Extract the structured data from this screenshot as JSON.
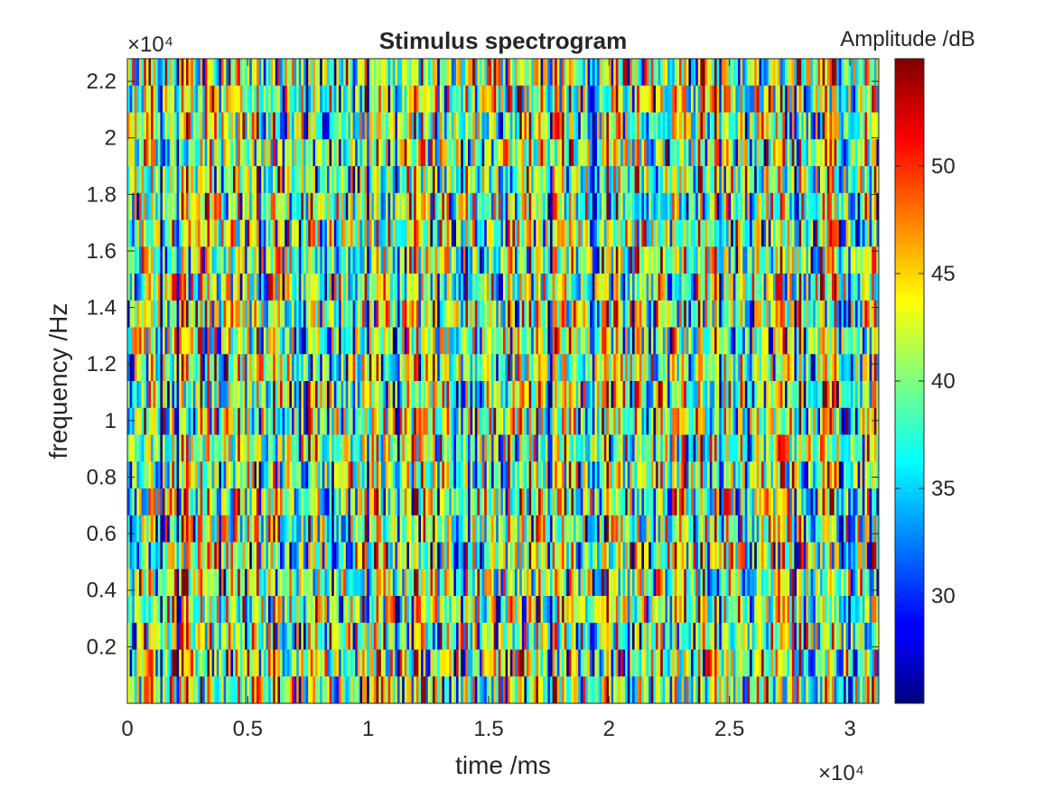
{
  "chart_data": {
    "type": "heatmap",
    "title": "Stimulus spectrogram",
    "xlabel": "time /ms",
    "ylabel": "frequency /Hz",
    "x_exponent_label": "×10⁴",
    "y_exponent_label": "×10⁴",
    "x_ticks": [
      {
        "value": 0,
        "label": "0"
      },
      {
        "value": 5000,
        "label": "0.5"
      },
      {
        "value": 10000,
        "label": "1"
      },
      {
        "value": 15000,
        "label": "1.5"
      },
      {
        "value": 20000,
        "label": "2"
      },
      {
        "value": 25000,
        "label": "2.5"
      },
      {
        "value": 30000,
        "label": "3"
      }
    ],
    "y_ticks": [
      {
        "value": 2000,
        "label": "0.2"
      },
      {
        "value": 4000,
        "label": "0.4"
      },
      {
        "value": 6000,
        "label": "0.6"
      },
      {
        "value": 8000,
        "label": "0.8"
      },
      {
        "value": 10000,
        "label": "1"
      },
      {
        "value": 12000,
        "label": "1.2"
      },
      {
        "value": 14000,
        "label": "1.4"
      },
      {
        "value": 16000,
        "label": "1.6"
      },
      {
        "value": 18000,
        "label": "1.8"
      },
      {
        "value": 20000,
        "label": "2"
      },
      {
        "value": 22000,
        "label": "2.2"
      }
    ],
    "xlim": [
      0,
      31200
    ],
    "ylim": [
      0,
      22800
    ],
    "grid": false,
    "colormap": "jet",
    "colorbar": {
      "label": "Amplitude /dB",
      "limits": [
        25,
        55
      ],
      "ticks": [
        {
          "value": 30,
          "label": "30"
        },
        {
          "value": 35,
          "label": "35"
        },
        {
          "value": 40,
          "label": "40"
        },
        {
          "value": 45,
          "label": "45"
        },
        {
          "value": 50,
          "label": "50"
        }
      ]
    },
    "data_description_values": {
      "time_bins": 320,
      "frequency_bins": 24,
      "mean_db": 40,
      "spread_db": 6
    }
  }
}
